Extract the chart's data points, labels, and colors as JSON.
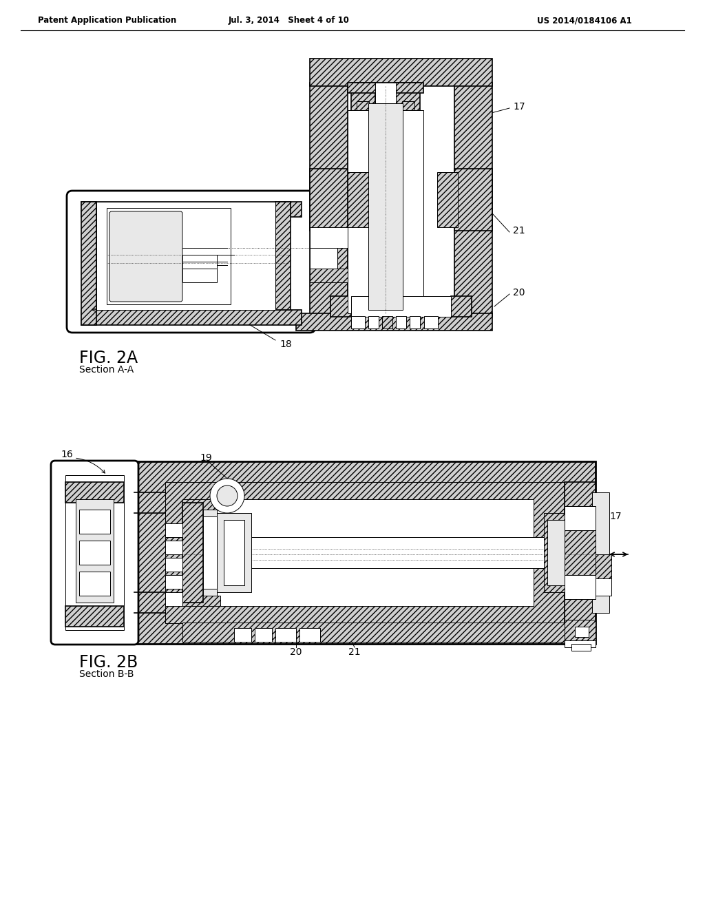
{
  "title_left": "Patent Application Publication",
  "title_mid": "Jul. 3, 2014   Sheet 4 of 10",
  "title_right": "US 2014/0184106 A1",
  "fig2a_label": "FIG. 2A",
  "fig2a_sub": "Section A-A",
  "fig2b_label": "FIG. 2B",
  "fig2b_sub": "Section B-B",
  "bg_color": "#ffffff",
  "lc": "#000000",
  "hatch_fc": "#d0d0d0",
  "white": "#ffffff",
  "light_gray": "#e8e8e8",
  "mid_gray": "#b0b0b0"
}
